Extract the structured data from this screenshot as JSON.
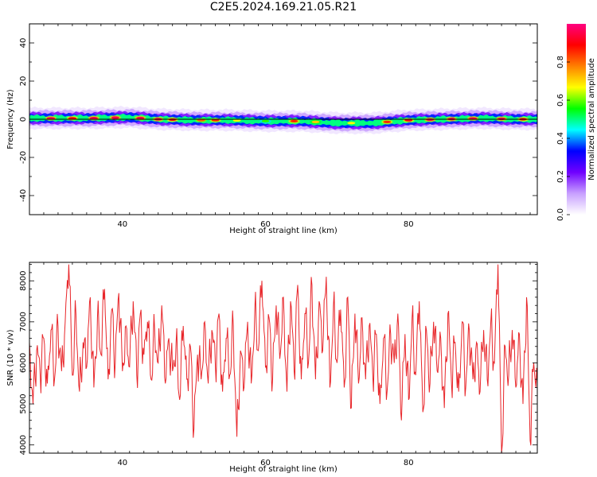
{
  "title": "C2E5.2024.169.21.05.R21",
  "chart_data": [
    {
      "type": "heatmap",
      "title": "C2E5.2024.169.21.05.R21",
      "xlabel": "Height of straight line (km)",
      "ylabel": "Frequency (Hz)",
      "xlim": [
        27,
        98
      ],
      "ylim": [
        -50,
        50
      ],
      "x_ticks": [
        "40",
        "60",
        "80"
      ],
      "y_ticks": [
        "-40",
        "-20",
        "0",
        "20",
        "40"
      ],
      "colorbar": {
        "label": "Normalized spectral amplitude",
        "range": [
          0,
          1
        ],
        "ticks": [
          "0.0",
          "0.2",
          "0.4",
          "0.6",
          "0.8"
        ],
        "colors": [
          "#ffffff",
          "#c8a0ff",
          "#7000ff",
          "#0000ff",
          "#00ffff",
          "#00ff00",
          "#ffff00",
          "#ff8000",
          "#ff0000",
          "#ff0080"
        ]
      },
      "band_center_hz": [
        [
          27,
          0.5
        ],
        [
          35,
          0.5
        ],
        [
          41,
          1.0
        ],
        [
          45,
          0.0
        ],
        [
          50,
          -0.5
        ],
        [
          55,
          -0.5
        ],
        [
          60,
          -1.0
        ],
        [
          65,
          -1.0
        ],
        [
          70,
          -2.0
        ],
        [
          75,
          -2.0
        ],
        [
          80,
          -0.5
        ],
        [
          85,
          0.0
        ],
        [
          90,
          0.5
        ],
        [
          95,
          0.0
        ],
        [
          98,
          0.0
        ]
      ],
      "band_halfwidth_hz": 2.5,
      "hotspots": [
        {
          "x": 30,
          "amp": 1.0
        },
        {
          "x": 33,
          "amp": 0.95
        },
        {
          "x": 36,
          "amp": 1.0
        },
        {
          "x": 39,
          "amp": 1.0
        },
        {
          "x": 42.5,
          "amp": 1.0
        },
        {
          "x": 45,
          "amp": 1.0
        },
        {
          "x": 47,
          "amp": 0.95
        },
        {
          "x": 51,
          "amp": 0.85
        },
        {
          "x": 53,
          "amp": 0.9
        },
        {
          "x": 56,
          "amp": 0.7
        },
        {
          "x": 60,
          "amp": 0.6
        },
        {
          "x": 64,
          "amp": 0.9
        },
        {
          "x": 67,
          "amp": 0.75
        },
        {
          "x": 72,
          "amp": 0.7
        },
        {
          "x": 77,
          "amp": 0.9
        },
        {
          "x": 80,
          "amp": 0.95
        },
        {
          "x": 83,
          "amp": 1.0
        },
        {
          "x": 86,
          "amp": 1.0
        },
        {
          "x": 89,
          "amp": 1.0
        },
        {
          "x": 93,
          "amp": 1.0
        },
        {
          "x": 96,
          "amp": 0.95
        }
      ]
    },
    {
      "type": "line",
      "xlabel": "Height of straight line (km)",
      "ylabel": "SNR (10 * v/v)",
      "xlim": [
        27,
        98
      ],
      "ylim": [
        3800,
        8450
      ],
      "x_ticks": [
        "40",
        "60",
        "80"
      ],
      "y_ticks": [
        "4000",
        "5000",
        "6000",
        "7000",
        "8000"
      ],
      "series": [
        {
          "color": "#e8262a",
          "points": [
            [
              27.0,
              6500
            ],
            [
              27.5,
              5000
            ],
            [
              28.0,
              6300
            ],
            [
              28.5,
              5700
            ],
            [
              29.0,
              6600
            ],
            [
              29.5,
              5500
            ],
            [
              30.0,
              6800
            ],
            [
              30.5,
              5600
            ],
            [
              31.0,
              6900
            ],
            [
              31.5,
              5800
            ],
            [
              32.0,
              7000
            ],
            [
              32.5,
              8400
            ],
            [
              33.0,
              5700
            ],
            [
              33.5,
              7200
            ],
            [
              34.0,
              5300
            ],
            [
              34.5,
              6500
            ],
            [
              35.0,
              5900
            ],
            [
              35.5,
              7600
            ],
            [
              36.0,
              5400
            ],
            [
              36.5,
              7100
            ],
            [
              37.0,
              6200
            ],
            [
              37.5,
              7800
            ],
            [
              38.0,
              5600
            ],
            [
              38.5,
              7300
            ],
            [
              39.0,
              6000
            ],
            [
              39.5,
              7700
            ],
            [
              40.0,
              5800
            ],
            [
              40.5,
              6900
            ],
            [
              41.0,
              5900
            ],
            [
              41.5,
              7500
            ],
            [
              42.0,
              5700
            ],
            [
              42.5,
              7200
            ],
            [
              43.0,
              6200
            ],
            [
              43.5,
              7000
            ],
            [
              44.0,
              5600
            ],
            [
              44.5,
              6800
            ],
            [
              45.0,
              6000
            ],
            [
              45.5,
              7400
            ],
            [
              46.0,
              5500
            ],
            [
              46.5,
              6600
            ],
            [
              47.0,
              5800
            ],
            [
              47.5,
              6500
            ],
            [
              48.0,
              5100
            ],
            [
              48.5,
              6900
            ],
            [
              49.0,
              5600
            ],
            [
              49.5,
              6400
            ],
            [
              50.0,
              4400
            ],
            [
              50.5,
              6200
            ],
            [
              51.0,
              5600
            ],
            [
              51.5,
              7000
            ],
            [
              52.0,
              5500
            ],
            [
              52.5,
              6800
            ],
            [
              53.0,
              5900
            ],
            [
              53.5,
              7200
            ],
            [
              54.0,
              5300
            ],
            [
              54.5,
              6600
            ],
            [
              55.0,
              5700
            ],
            [
              55.5,
              6900
            ],
            [
              56.0,
              4200
            ],
            [
              56.5,
              6300
            ],
            [
              57.0,
              5400
            ],
            [
              57.5,
              7000
            ],
            [
              58.0,
              5500
            ],
            [
              58.5,
              7300
            ],
            [
              59.0,
              6300
            ],
            [
              59.5,
              8000
            ],
            [
              60.0,
              5900
            ],
            [
              60.5,
              7100
            ],
            [
              61.0,
              5600
            ],
            [
              61.5,
              7400
            ],
            [
              62.0,
              6100
            ],
            [
              62.5,
              7600
            ],
            [
              63.0,
              5300
            ],
            [
              63.5,
              7500
            ],
            [
              64.0,
              5800
            ],
            [
              64.5,
              7900
            ],
            [
              65.0,
              5600
            ],
            [
              65.5,
              7200
            ],
            [
              66.0,
              6000
            ],
            [
              66.5,
              7900
            ],
            [
              67.0,
              5600
            ],
            [
              67.5,
              7500
            ],
            [
              68.0,
              6300
            ],
            [
              68.5,
              8100
            ],
            [
              69.0,
              5400
            ],
            [
              69.5,
              7400
            ],
            [
              70.0,
              6000
            ],
            [
              70.5,
              7300
            ],
            [
              71.0,
              5400
            ],
            [
              71.5,
              7600
            ],
            [
              72.0,
              4900
            ],
            [
              72.5,
              7200
            ],
            [
              73.0,
              5500
            ],
            [
              73.5,
              7100
            ],
            [
              74.0,
              5600
            ],
            [
              74.5,
              6900
            ],
            [
              75.0,
              5700
            ],
            [
              75.5,
              6700
            ],
            [
              76.0,
              5000
            ],
            [
              76.5,
              6600
            ],
            [
              77.0,
              5300
            ],
            [
              77.5,
              6700
            ],
            [
              78.0,
              6000
            ],
            [
              78.5,
              7200
            ],
            [
              79.0,
              4600
            ],
            [
              79.5,
              6700
            ],
            [
              80.0,
              5100
            ],
            [
              80.5,
              7100
            ],
            [
              81.0,
              5700
            ],
            [
              81.5,
              7500
            ],
            [
              82.0,
              4800
            ],
            [
              82.5,
              6800
            ],
            [
              83.0,
              5500
            ],
            [
              83.5,
              7000
            ],
            [
              84.0,
              5800
            ],
            [
              84.5,
              6600
            ],
            [
              85.0,
              4900
            ],
            [
              85.5,
              7200
            ],
            [
              86.0,
              5500
            ],
            [
              86.5,
              6500
            ],
            [
              87.0,
              5300
            ],
            [
              87.5,
              7000
            ],
            [
              88.0,
              5400
            ],
            [
              88.5,
              6800
            ],
            [
              89.0,
              5600
            ],
            [
              89.5,
              6500
            ],
            [
              90.0,
              5300
            ],
            [
              90.5,
              6800
            ],
            [
              91.0,
              5600
            ],
            [
              91.5,
              7000
            ],
            [
              92.0,
              6000
            ],
            [
              92.5,
              8400
            ],
            [
              93.0,
              3800
            ],
            [
              93.5,
              6400
            ],
            [
              94.0,
              5700
            ],
            [
              94.5,
              6800
            ],
            [
              95.0,
              5400
            ],
            [
              95.5,
              6700
            ],
            [
              96.0,
              5000
            ],
            [
              96.5,
              7600
            ],
            [
              97.0,
              4100
            ],
            [
              97.5,
              6000
            ],
            [
              98.0,
              5500
            ]
          ]
        }
      ]
    }
  ]
}
